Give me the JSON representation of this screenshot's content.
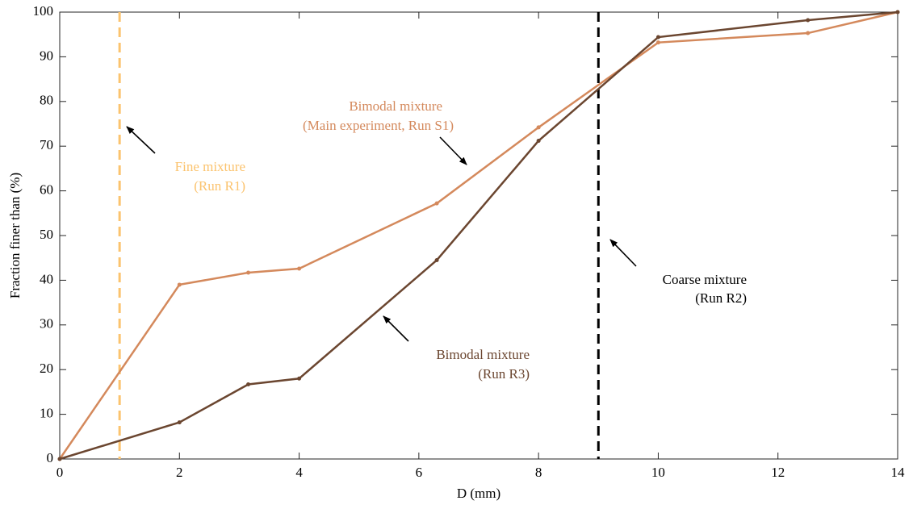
{
  "chart_data": {
    "type": "line",
    "xlabel": "D (mm)",
    "ylabel": "Fraction finer than (%)",
    "xlim": [
      0,
      14
    ],
    "xticks": [
      0,
      2,
      4,
      6,
      8,
      10,
      12,
      14
    ],
    "ylim": [
      0,
      100
    ],
    "yticks": [
      0,
      10,
      20,
      30,
      40,
      50,
      60,
      70,
      80,
      90,
      100
    ],
    "series": [
      {
        "label": [
          "Bimodal mixture",
          "(Main experiment, Run S1)"
        ],
        "color": "#d4895c",
        "x": [
          0,
          2,
          3.15,
          4,
          6.3,
          8,
          10,
          12.5,
          14
        ],
        "values": [
          0,
          39,
          41.7,
          42.6,
          57.2,
          74.2,
          93.2,
          95.3,
          100
        ]
      },
      {
        "label": [
          "Bimodal mixture",
          "(Run R3)"
        ],
        "color": "#6b4630",
        "x": [
          0,
          2,
          3.15,
          4,
          6.3,
          8,
          10,
          12.5,
          14
        ],
        "values": [
          0,
          8.2,
          16.7,
          18,
          44.5,
          71.2,
          94.4,
          98.2,
          100
        ]
      }
    ],
    "vlines": [
      {
        "x": 1,
        "color": "#fbc36e",
        "label": [
          "Fine mixture",
          "(Run R1)"
        ]
      },
      {
        "x": 9,
        "color": "#000000",
        "label": [
          "Coarse mixture",
          "(Run R2)"
        ]
      }
    ]
  }
}
